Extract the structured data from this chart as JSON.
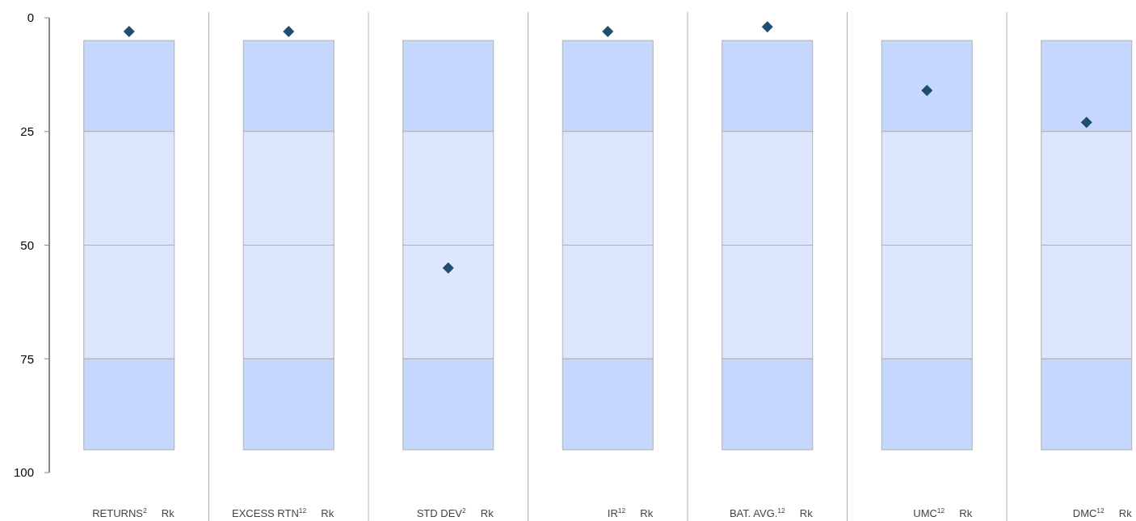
{
  "chart_data": {
    "type": "bar",
    "categories": [
      "RETURNS$^{2}$",
      "EXCESS RTN$^{12}$",
      "STD DEV$^{2}$",
      "IR$^{12}$",
      "BAT. AVG.$^{12}$",
      "UMC$^{12}$",
      "DMC$^{12}$"
    ],
    "series": [
      {
        "color": "#c5d7fc",
        "base": [
          5,
          5,
          5,
          5,
          5,
          5,
          5
        ],
        "values": [
          20,
          20,
          20,
          20,
          20,
          20,
          20
        ]
      },
      {
        "color": "#dce6fd",
        "base": [
          25,
          25,
          25,
          25,
          25,
          25,
          25
        ],
        "values": [
          25,
          25,
          25,
          25,
          25,
          25,
          25
        ]
      },
      {
        "color": "#dce6fd",
        "base": [
          50,
          50,
          50,
          50,
          50,
          50,
          50
        ],
        "values": [
          25,
          25,
          25,
          25,
          25,
          25,
          25
        ]
      },
      {
        "color": "#c5d7fc",
        "base": [
          75,
          75,
          75,
          75,
          75,
          75,
          75
        ],
        "values": [
          20,
          20,
          20,
          20,
          20,
          20,
          20
        ]
      },
      {
        "type": "scatter",
        "color": "#1f4e6e",
        "marker": "diamond",
        "x": [
          "RETURNS$^{2}$",
          "EXCESS RTN$^{12}$",
          "STD DEV$^{2}$",
          "IR$^{12}$",
          "BAT. AVG.$^{12}$",
          "UMC$^{12}$",
          "DMC$^{12}$"
        ],
        "values": [
          3,
          3,
          55,
          3,
          2,
          16,
          23
        ]
      }
    ],
    "ylim": [
      100,
      0
    ],
    "yticks": [
      0,
      25,
      50,
      75,
      100
    ],
    "annotations": [
      "Rk",
      "Rk",
      "Rk",
      "Rk",
      "Rk",
      "Rk",
      "Rk"
    ]
  }
}
